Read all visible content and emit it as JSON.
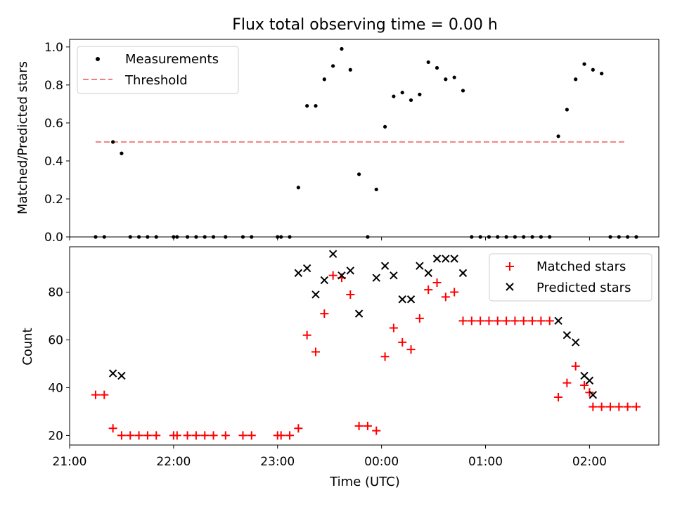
{
  "chart_data": [
    {
      "type": "scatter",
      "title": "Flux total observing time = 0.00 h",
      "xlabel": "",
      "ylabel": "Matched/Predicted stars",
      "xlim": [
        "21:00",
        "02:40"
      ],
      "ylim": [
        0,
        1.04
      ],
      "yticks": [
        "0.0",
        "0.2",
        "0.4",
        "0.6",
        "0.8",
        "1.0"
      ],
      "legend": {
        "placement": "top-left",
        "entries": [
          "Measurements",
          "Threshold"
        ]
      },
      "threshold": {
        "name": "Threshold",
        "value": 0.5,
        "x_start": "21:15",
        "x_end": "02:20",
        "color": "#f08080"
      },
      "series": [
        {
          "name": "Measurements",
          "marker": "dot",
          "color": "#000000",
          "points": [
            [
              "21:15",
              0.0
            ],
            [
              "21:20",
              0.0
            ],
            [
              "21:25",
              0.5
            ],
            [
              "21:30",
              0.44
            ],
            [
              "21:35",
              0.0
            ],
            [
              "21:40",
              0.0
            ],
            [
              "21:45",
              0.0
            ],
            [
              "21:50",
              0.0
            ],
            [
              "22:00",
              0.0
            ],
            [
              "22:02",
              0.0
            ],
            [
              "22:08",
              0.0
            ],
            [
              "22:13",
              0.0
            ],
            [
              "22:18",
              0.0
            ],
            [
              "22:23",
              0.0
            ],
            [
              "22:30",
              0.0
            ],
            [
              "22:40",
              0.0
            ],
            [
              "22:45",
              0.0
            ],
            [
              "23:00",
              0.0
            ],
            [
              "23:02",
              0.0
            ],
            [
              "23:07",
              0.0
            ],
            [
              "23:12",
              0.26
            ],
            [
              "23:17",
              0.69
            ],
            [
              "23:22",
              0.69
            ],
            [
              "23:27",
              0.83
            ],
            [
              "23:32",
              0.9
            ],
            [
              "23:37",
              0.99
            ],
            [
              "23:42",
              0.88
            ],
            [
              "23:47",
              0.33
            ],
            [
              "23:52",
              0.0
            ],
            [
              "23:57",
              0.25
            ],
            [
              "00:02",
              0.58
            ],
            [
              "00:07",
              0.74
            ],
            [
              "00:12",
              0.76
            ],
            [
              "00:17",
              0.72
            ],
            [
              "00:22",
              0.75
            ],
            [
              "00:27",
              0.92
            ],
            [
              "00:32",
              0.89
            ],
            [
              "00:37",
              0.83
            ],
            [
              "00:42",
              0.84
            ],
            [
              "00:47",
              0.77
            ],
            [
              "00:52",
              0.0
            ],
            [
              "00:57",
              0.0
            ],
            [
              "01:02",
              0.0
            ],
            [
              "01:07",
              0.0
            ],
            [
              "01:12",
              0.0
            ],
            [
              "01:17",
              0.0
            ],
            [
              "01:22",
              0.0
            ],
            [
              "01:27",
              0.0
            ],
            [
              "01:32",
              0.0
            ],
            [
              "01:37",
              0.0
            ],
            [
              "01:42",
              0.53
            ],
            [
              "01:47",
              0.67
            ],
            [
              "01:52",
              0.83
            ],
            [
              "01:57",
              0.91
            ],
            [
              "02:02",
              0.88
            ],
            [
              "02:07",
              0.86
            ],
            [
              "02:12",
              0.0
            ],
            [
              "02:17",
              0.0
            ],
            [
              "02:22",
              0.0
            ],
            [
              "02:27",
              0.0
            ]
          ]
        }
      ]
    },
    {
      "type": "scatter",
      "title": "",
      "xlabel": "Time (UTC)",
      "ylabel": "Count",
      "xlim": [
        "21:00",
        "02:40"
      ],
      "ylim": [
        16,
        99
      ],
      "yticks": [
        "20",
        "40",
        "60",
        "80"
      ],
      "xticks": [
        "21:00",
        "22:00",
        "23:00",
        "00:00",
        "01:00",
        "02:00"
      ],
      "legend": {
        "placement": "top-right",
        "entries": [
          "Matched stars",
          "Predicted stars"
        ]
      },
      "series": [
        {
          "name": "Matched stars",
          "marker": "plus",
          "color": "#ff0000",
          "points": [
            [
              "21:15",
              37
            ],
            [
              "21:20",
              37
            ],
            [
              "21:25",
              23
            ],
            [
              "21:30",
              20
            ],
            [
              "21:35",
              20
            ],
            [
              "21:40",
              20
            ],
            [
              "21:45",
              20
            ],
            [
              "21:50",
              20
            ],
            [
              "22:00",
              20
            ],
            [
              "22:02",
              20
            ],
            [
              "22:08",
              20
            ],
            [
              "22:13",
              20
            ],
            [
              "22:18",
              20
            ],
            [
              "22:23",
              20
            ],
            [
              "22:30",
              20
            ],
            [
              "22:40",
              20
            ],
            [
              "22:45",
              20
            ],
            [
              "23:00",
              20
            ],
            [
              "23:02",
              20
            ],
            [
              "23:07",
              20
            ],
            [
              "23:12",
              23
            ],
            [
              "23:17",
              62
            ],
            [
              "23:22",
              55
            ],
            [
              "23:27",
              71
            ],
            [
              "23:32",
              87
            ],
            [
              "23:37",
              86
            ],
            [
              "23:42",
              79
            ],
            [
              "23:47",
              24
            ],
            [
              "23:52",
              24
            ],
            [
              "23:57",
              22
            ],
            [
              "00:02",
              53
            ],
            [
              "00:07",
              65
            ],
            [
              "00:12",
              59
            ],
            [
              "00:17",
              56
            ],
            [
              "00:22",
              69
            ],
            [
              "00:27",
              81
            ],
            [
              "00:32",
              84
            ],
            [
              "00:37",
              78
            ],
            [
              "00:42",
              80
            ],
            [
              "00:47",
              68
            ],
            [
              "00:52",
              68
            ],
            [
              "00:57",
              68
            ],
            [
              "01:02",
              68
            ],
            [
              "01:07",
              68
            ],
            [
              "01:12",
              68
            ],
            [
              "01:17",
              68
            ],
            [
              "01:22",
              68
            ],
            [
              "01:27",
              68
            ],
            [
              "01:32",
              68
            ],
            [
              "01:37",
              68
            ],
            [
              "01:42",
              36
            ],
            [
              "01:47",
              42
            ],
            [
              "01:52",
              49
            ],
            [
              "01:57",
              41
            ],
            [
              "02:00",
              38
            ],
            [
              "02:02",
              32
            ],
            [
              "02:07",
              32
            ],
            [
              "02:12",
              32
            ],
            [
              "02:17",
              32
            ],
            [
              "02:22",
              32
            ],
            [
              "02:27",
              32
            ]
          ]
        },
        {
          "name": "Predicted stars",
          "marker": "x",
          "color": "#000000",
          "points": [
            [
              "21:25",
              46
            ],
            [
              "21:30",
              45
            ],
            [
              "23:12",
              88
            ],
            [
              "23:17",
              90
            ],
            [
              "23:22",
              79
            ],
            [
              "23:27",
              85
            ],
            [
              "23:32",
              96
            ],
            [
              "23:37",
              87
            ],
            [
              "23:42",
              89
            ],
            [
              "23:47",
              71
            ],
            [
              "23:57",
              86
            ],
            [
              "00:02",
              91
            ],
            [
              "00:07",
              87
            ],
            [
              "00:12",
              77
            ],
            [
              "00:17",
              77
            ],
            [
              "00:22",
              91
            ],
            [
              "00:27",
              88
            ],
            [
              "00:32",
              94
            ],
            [
              "00:37",
              94
            ],
            [
              "00:42",
              94
            ],
            [
              "00:47",
              88
            ],
            [
              "01:42",
              68
            ],
            [
              "01:47",
              62
            ],
            [
              "01:52",
              59
            ],
            [
              "01:57",
              45
            ],
            [
              "02:00",
              43
            ],
            [
              "02:02",
              37
            ]
          ]
        }
      ]
    }
  ]
}
